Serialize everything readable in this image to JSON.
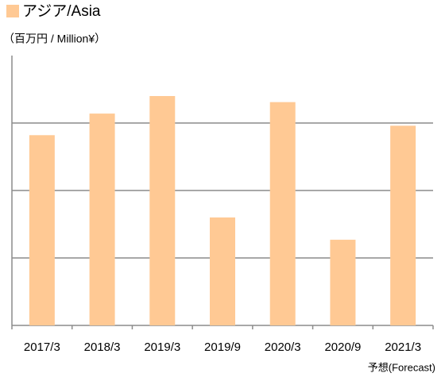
{
  "chart_data": {
    "type": "bar",
    "title": "アジア/Asia",
    "subtitle": "（百万円 / Million¥）",
    "annotation": "予想(Forecast)",
    "categories": [
      "2017/3",
      "2018/3",
      "2019/3",
      "2019/9",
      "2020/3",
      "2020/9",
      "2021/3"
    ],
    "values": [
      2.82,
      3.14,
      3.4,
      1.6,
      3.31,
      1.27,
      2.96
    ],
    "color": "#ffc994",
    "ylim": [
      0,
      4
    ],
    "yticks": [
      0,
      1,
      2,
      3
    ],
    "grid": true
  }
}
